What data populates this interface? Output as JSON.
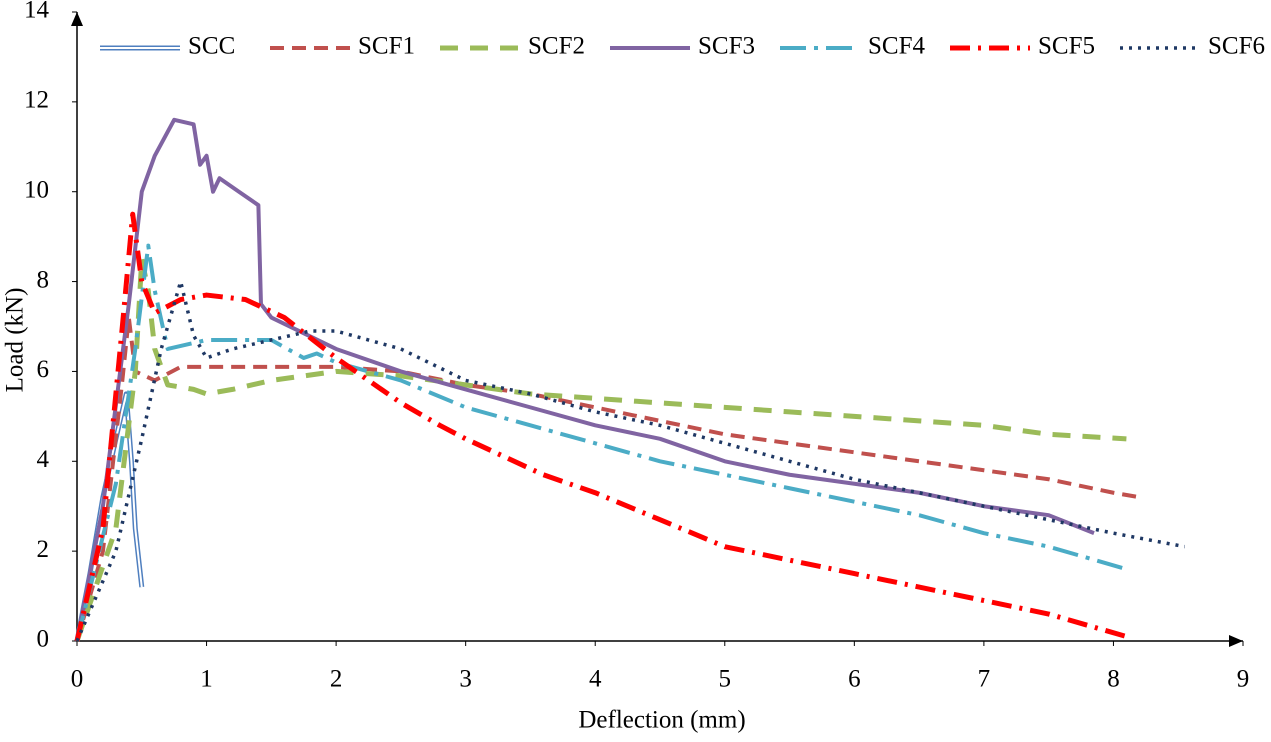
{
  "chart_data": {
    "type": "line",
    "x_label": "Deflection (mm)",
    "y_label": "Load (kN)",
    "xlim": [
      0,
      9
    ],
    "xticks": [
      0,
      1,
      2,
      3,
      4,
      5,
      6,
      7,
      8,
      9
    ],
    "ylim": [
      0,
      14
    ],
    "yticks": [
      0,
      2,
      4,
      6,
      8,
      10,
      12,
      14
    ],
    "grid": false,
    "legend": "top",
    "series": [
      {
        "name": "SCC",
        "color": "#4f7fbf",
        "x": [
          0,
          0.1,
          0.2,
          0.3,
          0.38,
          0.42,
          0.45,
          0.5
        ],
        "values": [
          0,
          1.5,
          3.2,
          4.5,
          5.5,
          4,
          2.5,
          1.2
        ]
      },
      {
        "name": "SCF1",
        "color": "#c0504d",
        "x": [
          0,
          0.2,
          0.35,
          0.4,
          0.45,
          0.6,
          0.8,
          1,
          1.5,
          2,
          2.5,
          3,
          3.5,
          4,
          4.5,
          5,
          5.5,
          6,
          6.5,
          7,
          7.5,
          8,
          8.2
        ],
        "values": [
          0,
          2,
          5.8,
          7.2,
          6,
          5.8,
          6.1,
          6.1,
          6.1,
          6.1,
          6,
          5.7,
          5.5,
          5.2,
          4.9,
          4.6,
          4.4,
          4.2,
          4,
          3.8,
          3.6,
          3.3,
          3.2
        ]
      },
      {
        "name": "SCF2",
        "color": "#9bbb59",
        "x": [
          0,
          0.3,
          0.45,
          0.5,
          0.55,
          0.6,
          0.7,
          0.9,
          1,
          1.2,
          1.5,
          2,
          2.5,
          3,
          3.5,
          4,
          4.5,
          5,
          5.5,
          6,
          6.5,
          7,
          7.5,
          8.1
        ],
        "values": [
          0,
          2.5,
          6,
          8.5,
          7.8,
          6.5,
          5.7,
          5.6,
          5.5,
          5.6,
          5.8,
          6,
          5.9,
          5.7,
          5.5,
          5.4,
          5.3,
          5.2,
          5.1,
          5,
          4.9,
          4.8,
          4.6,
          4.5
        ]
      },
      {
        "name": "SCF3",
        "color": "#8064a2",
        "x": [
          0,
          0.2,
          0.4,
          0.5,
          0.6,
          0.75,
          0.9,
          0.95,
          1,
          1.05,
          1.1,
          1.25,
          1.4,
          1.42,
          1.5,
          2,
          2.5,
          3,
          3.5,
          4,
          4.5,
          5,
          5.5,
          6,
          6.5,
          7,
          7.5,
          7.85
        ],
        "values": [
          0,
          3,
          7.5,
          10,
          10.8,
          11.6,
          11.5,
          10.6,
          10.8,
          10,
          10.3,
          10,
          9.7,
          7.5,
          7.2,
          6.5,
          6,
          5.6,
          5.2,
          4.8,
          4.5,
          4,
          3.7,
          3.5,
          3.3,
          3,
          2.8,
          2.4
        ]
      },
      {
        "name": "SCF4",
        "color": "#4bacc6",
        "x": [
          0,
          0.3,
          0.45,
          0.55,
          0.6,
          0.7,
          1,
          1.5,
          1.75,
          1.85,
          2,
          2.5,
          3,
          3.5,
          4,
          4.5,
          5,
          5.5,
          6,
          6.5,
          7,
          7.5,
          8.1
        ],
        "values": [
          0,
          3.5,
          6.5,
          8.8,
          7.8,
          6.5,
          6.7,
          6.7,
          6.3,
          6.4,
          6.2,
          5.8,
          5.2,
          4.8,
          4.4,
          4,
          3.7,
          3.4,
          3.1,
          2.8,
          2.4,
          2.1,
          1.6
        ]
      },
      {
        "name": "SCF5",
        "color": "#ff0000",
        "x": [
          0,
          0.2,
          0.35,
          0.43,
          0.5,
          0.6,
          0.8,
          1,
          1.3,
          1.6,
          2,
          2.5,
          2.8,
          3,
          3.3,
          3.6,
          4,
          4.5,
          5,
          5.5,
          6,
          6.5,
          7,
          7.5,
          8.1
        ],
        "values": [
          0,
          2.5,
          7,
          9.5,
          8,
          7.3,
          7.6,
          7.7,
          7.6,
          7.2,
          6.3,
          5.3,
          4.8,
          4.5,
          4.1,
          3.7,
          3.3,
          2.7,
          2.1,
          1.8,
          1.5,
          1.2,
          0.9,
          0.6,
          0.1
        ]
      },
      {
        "name": "SCF6",
        "color": "#1f3864",
        "x": [
          0,
          0.3,
          0.5,
          0.65,
          0.8,
          0.9,
          1,
          1.2,
          1.5,
          1.8,
          2,
          2.5,
          3,
          3.5,
          4,
          4.5,
          5,
          5.5,
          6,
          6.5,
          7,
          7.5,
          8,
          8.55
        ],
        "values": [
          0,
          2,
          4.5,
          6.5,
          8,
          6.8,
          6.3,
          6.5,
          6.7,
          6.9,
          6.9,
          6.5,
          5.8,
          5.5,
          5.1,
          4.8,
          4.4,
          4,
          3.6,
          3.3,
          3,
          2.7,
          2.4,
          2.1
        ]
      }
    ]
  }
}
